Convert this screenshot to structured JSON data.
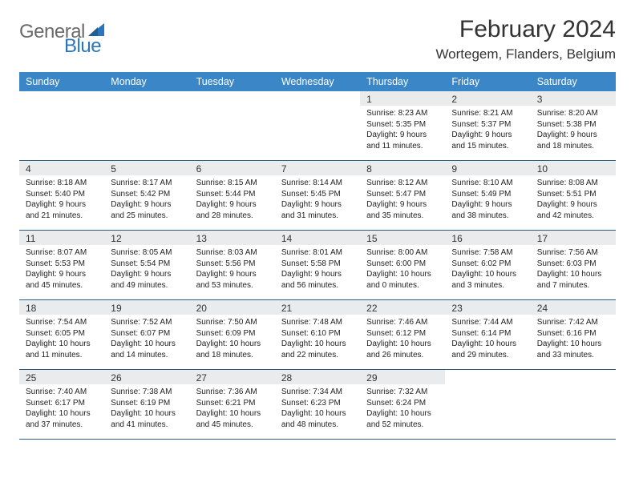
{
  "brand": {
    "text_general": "General",
    "text_blue": "Blue",
    "sail_color": "#2b76bb",
    "text_general_color": "#6a6a6a"
  },
  "header": {
    "month_title": "February 2024",
    "location": "Wortegem, Flanders, Belgium"
  },
  "colors": {
    "weekday_bg": "#3b86c7",
    "weekday_fg": "#ffffff",
    "daynum_bg": "#e9ebec",
    "row_border": "#2b5b86",
    "body_text": "#222222"
  },
  "weekdays": [
    "Sunday",
    "Monday",
    "Tuesday",
    "Wednesday",
    "Thursday",
    "Friday",
    "Saturday"
  ],
  "weeks": [
    [
      null,
      null,
      null,
      null,
      {
        "n": "1",
        "sr": "Sunrise: 8:23 AM",
        "ss": "Sunset: 5:35 PM",
        "dl": "Daylight: 9 hours and 11 minutes."
      },
      {
        "n": "2",
        "sr": "Sunrise: 8:21 AM",
        "ss": "Sunset: 5:37 PM",
        "dl": "Daylight: 9 hours and 15 minutes."
      },
      {
        "n": "3",
        "sr": "Sunrise: 8:20 AM",
        "ss": "Sunset: 5:38 PM",
        "dl": "Daylight: 9 hours and 18 minutes."
      }
    ],
    [
      {
        "n": "4",
        "sr": "Sunrise: 8:18 AM",
        "ss": "Sunset: 5:40 PM",
        "dl": "Daylight: 9 hours and 21 minutes."
      },
      {
        "n": "5",
        "sr": "Sunrise: 8:17 AM",
        "ss": "Sunset: 5:42 PM",
        "dl": "Daylight: 9 hours and 25 minutes."
      },
      {
        "n": "6",
        "sr": "Sunrise: 8:15 AM",
        "ss": "Sunset: 5:44 PM",
        "dl": "Daylight: 9 hours and 28 minutes."
      },
      {
        "n": "7",
        "sr": "Sunrise: 8:14 AM",
        "ss": "Sunset: 5:45 PM",
        "dl": "Daylight: 9 hours and 31 minutes."
      },
      {
        "n": "8",
        "sr": "Sunrise: 8:12 AM",
        "ss": "Sunset: 5:47 PM",
        "dl": "Daylight: 9 hours and 35 minutes."
      },
      {
        "n": "9",
        "sr": "Sunrise: 8:10 AM",
        "ss": "Sunset: 5:49 PM",
        "dl": "Daylight: 9 hours and 38 minutes."
      },
      {
        "n": "10",
        "sr": "Sunrise: 8:08 AM",
        "ss": "Sunset: 5:51 PM",
        "dl": "Daylight: 9 hours and 42 minutes."
      }
    ],
    [
      {
        "n": "11",
        "sr": "Sunrise: 8:07 AM",
        "ss": "Sunset: 5:53 PM",
        "dl": "Daylight: 9 hours and 45 minutes."
      },
      {
        "n": "12",
        "sr": "Sunrise: 8:05 AM",
        "ss": "Sunset: 5:54 PM",
        "dl": "Daylight: 9 hours and 49 minutes."
      },
      {
        "n": "13",
        "sr": "Sunrise: 8:03 AM",
        "ss": "Sunset: 5:56 PM",
        "dl": "Daylight: 9 hours and 53 minutes."
      },
      {
        "n": "14",
        "sr": "Sunrise: 8:01 AM",
        "ss": "Sunset: 5:58 PM",
        "dl": "Daylight: 9 hours and 56 minutes."
      },
      {
        "n": "15",
        "sr": "Sunrise: 8:00 AM",
        "ss": "Sunset: 6:00 PM",
        "dl": "Daylight: 10 hours and 0 minutes."
      },
      {
        "n": "16",
        "sr": "Sunrise: 7:58 AM",
        "ss": "Sunset: 6:02 PM",
        "dl": "Daylight: 10 hours and 3 minutes."
      },
      {
        "n": "17",
        "sr": "Sunrise: 7:56 AM",
        "ss": "Sunset: 6:03 PM",
        "dl": "Daylight: 10 hours and 7 minutes."
      }
    ],
    [
      {
        "n": "18",
        "sr": "Sunrise: 7:54 AM",
        "ss": "Sunset: 6:05 PM",
        "dl": "Daylight: 10 hours and 11 minutes."
      },
      {
        "n": "19",
        "sr": "Sunrise: 7:52 AM",
        "ss": "Sunset: 6:07 PM",
        "dl": "Daylight: 10 hours and 14 minutes."
      },
      {
        "n": "20",
        "sr": "Sunrise: 7:50 AM",
        "ss": "Sunset: 6:09 PM",
        "dl": "Daylight: 10 hours and 18 minutes."
      },
      {
        "n": "21",
        "sr": "Sunrise: 7:48 AM",
        "ss": "Sunset: 6:10 PM",
        "dl": "Daylight: 10 hours and 22 minutes."
      },
      {
        "n": "22",
        "sr": "Sunrise: 7:46 AM",
        "ss": "Sunset: 6:12 PM",
        "dl": "Daylight: 10 hours and 26 minutes."
      },
      {
        "n": "23",
        "sr": "Sunrise: 7:44 AM",
        "ss": "Sunset: 6:14 PM",
        "dl": "Daylight: 10 hours and 29 minutes."
      },
      {
        "n": "24",
        "sr": "Sunrise: 7:42 AM",
        "ss": "Sunset: 6:16 PM",
        "dl": "Daylight: 10 hours and 33 minutes."
      }
    ],
    [
      {
        "n": "25",
        "sr": "Sunrise: 7:40 AM",
        "ss": "Sunset: 6:17 PM",
        "dl": "Daylight: 10 hours and 37 minutes."
      },
      {
        "n": "26",
        "sr": "Sunrise: 7:38 AM",
        "ss": "Sunset: 6:19 PM",
        "dl": "Daylight: 10 hours and 41 minutes."
      },
      {
        "n": "27",
        "sr": "Sunrise: 7:36 AM",
        "ss": "Sunset: 6:21 PM",
        "dl": "Daylight: 10 hours and 45 minutes."
      },
      {
        "n": "28",
        "sr": "Sunrise: 7:34 AM",
        "ss": "Sunset: 6:23 PM",
        "dl": "Daylight: 10 hours and 48 minutes."
      },
      {
        "n": "29",
        "sr": "Sunrise: 7:32 AM",
        "ss": "Sunset: 6:24 PM",
        "dl": "Daylight: 10 hours and 52 minutes."
      },
      null,
      null
    ]
  ]
}
